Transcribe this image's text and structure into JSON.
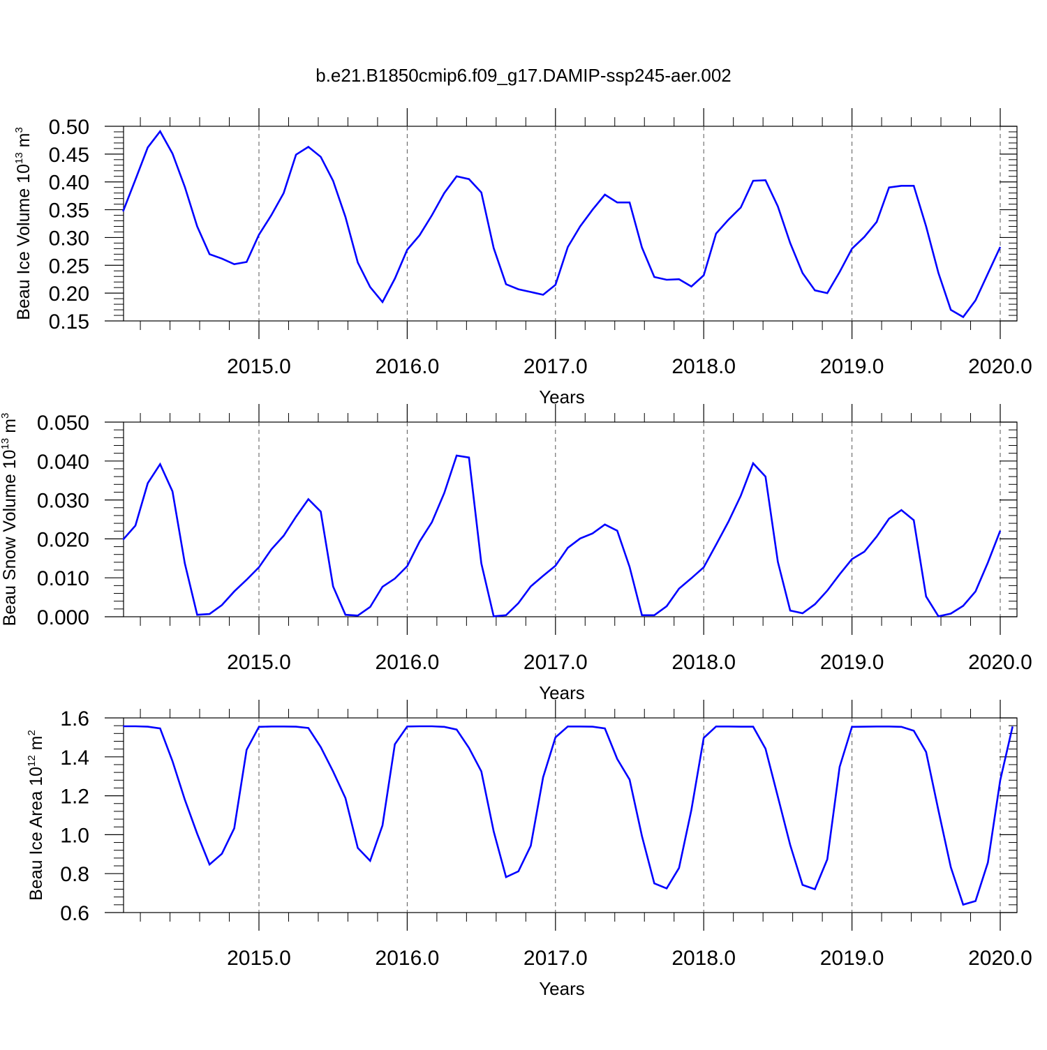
{
  "title": "b.e21.B1850cmip6.f09_g17.DAMIP-ssp245-aer.002",
  "colors": {
    "line": "#0000ff",
    "axis": "#000000",
    "grid": "#555555"
  },
  "chart_data": [
    {
      "type": "line",
      "ylabel": {
        "main": "Beau Ice Volume 10",
        "exp": "13",
        "unit": " m",
        "unit_exp": "3"
      },
      "xlabel": "Years",
      "xlim": [
        2014.0833,
        2020.0
      ],
      "ylim": [
        0.15,
        0.5
      ],
      "yticks": [
        0.15,
        0.2,
        0.25,
        0.3,
        0.35,
        0.4,
        0.45,
        0.5
      ],
      "ytick_labels": [
        "0.15",
        "0.20",
        "0.25",
        "0.30",
        "0.35",
        "0.40",
        "0.45",
        "0.50"
      ],
      "xticks": [
        2015,
        2016,
        2017,
        2018,
        2019,
        2020
      ],
      "xtick_labels": [
        "2015.0",
        "2016.0",
        "2017.0",
        "2018.0",
        "2019.0",
        "2020.0"
      ],
      "grid": "vertical dashed at major x ticks",
      "series": [
        {
          "x_start": 2014.0833,
          "x_step": 0.0833333,
          "values": [
            0.347,
            0.404,
            0.462,
            0.491,
            0.451,
            0.391,
            0.32,
            0.27,
            0.262,
            0.252,
            0.256,
            0.305,
            0.34,
            0.38,
            0.449,
            0.463,
            0.445,
            0.402,
            0.337,
            0.255,
            0.211,
            0.184,
            0.226,
            0.278,
            0.304,
            0.34,
            0.38,
            0.41,
            0.405,
            0.381,
            0.281,
            0.216,
            0.207,
            0.202,
            0.197,
            0.215,
            0.283,
            0.32,
            0.35,
            0.377,
            0.363,
            0.363,
            0.282,
            0.229,
            0.224,
            0.225,
            0.212,
            0.232,
            0.307,
            0.332,
            0.354,
            0.402,
            0.403,
            0.356,
            0.29,
            0.236,
            0.205,
            0.2,
            0.238,
            0.28,
            0.301,
            0.328,
            0.39,
            0.393,
            0.393,
            0.32,
            0.236,
            0.17,
            0.157,
            0.187,
            0.235,
            0.283
          ]
        }
      ]
    },
    {
      "type": "line",
      "ylabel": {
        "main": "Beau Snow Volume 10",
        "exp": "13",
        "unit": " m",
        "unit_exp": "3"
      },
      "xlabel": "Years",
      "xlim": [
        2014.0833,
        2020.0
      ],
      "ylim": [
        0.0,
        0.05
      ],
      "yticks": [
        0.0,
        0.01,
        0.02,
        0.03,
        0.04,
        0.05
      ],
      "ytick_labels": [
        "0.000",
        "0.010",
        "0.020",
        "0.030",
        "0.040",
        "0.050"
      ],
      "xticks": [
        2015,
        2016,
        2017,
        2018,
        2019,
        2020
      ],
      "xtick_labels": [
        "2015.0",
        "2016.0",
        "2017.0",
        "2018.0",
        "2019.0",
        "2020.0"
      ],
      "grid": "vertical dashed at major x ticks",
      "series": [
        {
          "x_start": 2014.0833,
          "x_step": 0.0833333,
          "values": [
            0.0198,
            0.0234,
            0.0343,
            0.0392,
            0.0322,
            0.0137,
            0.0005,
            0.0007,
            0.003,
            0.0065,
            0.0095,
            0.0127,
            0.0173,
            0.0208,
            0.0257,
            0.0302,
            0.027,
            0.0078,
            0.0005,
            0.0003,
            0.0025,
            0.0077,
            0.0098,
            0.013,
            0.0193,
            0.0243,
            0.0318,
            0.0414,
            0.0409,
            0.0137,
            0.0001,
            0.0004,
            0.0035,
            0.0078,
            0.0105,
            0.0131,
            0.0177,
            0.0201,
            0.0214,
            0.0237,
            0.0221,
            0.0128,
            0.0004,
            0.0004,
            0.0027,
            0.0072,
            0.0099,
            0.0127,
            0.0185,
            0.0244,
            0.0311,
            0.0394,
            0.036,
            0.0141,
            0.0016,
            0.0009,
            0.0032,
            0.0067,
            0.0109,
            0.0148,
            0.0167,
            0.0206,
            0.0252,
            0.0274,
            0.0248,
            0.0052,
            0.0001,
            0.0008,
            0.0028,
            0.0065,
            0.0139,
            0.0221
          ]
        }
      ]
    },
    {
      "type": "line",
      "ylabel": {
        "main": "Beau Ice Area 10",
        "exp": "12",
        "unit": " m",
        "unit_exp": "2"
      },
      "xlabel": "Years",
      "xlim": [
        2014.0833,
        2020.0
      ],
      "ylim": [
        0.6,
        1.6
      ],
      "yticks": [
        0.6,
        0.8,
        1.0,
        1.2,
        1.4,
        1.6
      ],
      "ytick_labels": [
        "0.6",
        "0.8",
        "1.0",
        "1.2",
        "1.4",
        "1.6"
      ],
      "xticks": [
        2015,
        2016,
        2017,
        2018,
        2019,
        2020
      ],
      "xtick_labels": [
        "2015.0",
        "2016.0",
        "2017.0",
        "2018.0",
        "2019.0",
        "2020.0"
      ],
      "grid": "vertical dashed at major x ticks",
      "series": [
        {
          "x_start": 2014.0833,
          "x_step": 0.0833333,
          "values": [
            1.557,
            1.557,
            1.555,
            1.546,
            1.378,
            1.18,
            1.005,
            0.847,
            0.902,
            1.033,
            1.436,
            1.554,
            1.556,
            1.556,
            1.555,
            1.548,
            1.45,
            1.325,
            1.188,
            0.932,
            0.866,
            1.048,
            1.465,
            1.556,
            1.557,
            1.557,
            1.554,
            1.54,
            1.446,
            1.325,
            1.017,
            0.782,
            0.812,
            0.943,
            1.295,
            1.5,
            1.556,
            1.556,
            1.555,
            1.546,
            1.389,
            1.283,
            0.993,
            0.75,
            0.724,
            0.829,
            1.127,
            1.497,
            1.556,
            1.556,
            1.555,
            1.555,
            1.442,
            1.195,
            0.947,
            0.742,
            0.72,
            0.873,
            1.348,
            1.554,
            1.555,
            1.556,
            1.556,
            1.554,
            1.534,
            1.425,
            1.124,
            0.833,
            0.641,
            0.659,
            0.857,
            1.28,
            1.556
          ]
        }
      ]
    }
  ]
}
